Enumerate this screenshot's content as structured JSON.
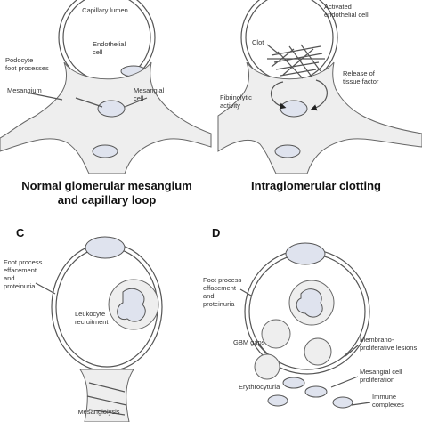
{
  "panels": [
    {
      "caption": [
        "Normal glomerular mesangium",
        "and capillary loop"
      ],
      "labels": [
        {
          "lines": [
            "Capillary lumen"
          ]
        },
        {
          "lines": [
            "Endothelial",
            "cell"
          ]
        },
        {
          "lines": [
            "Podocyte",
            "foot processes"
          ]
        },
        {
          "lines": [
            "Mesangium"
          ]
        },
        {
          "lines": [
            "Mesangial",
            "cell"
          ]
        }
      ]
    },
    {
      "caption": [
        "Intraglomerular clotting"
      ],
      "labels": [
        {
          "lines": [
            "Activated",
            "endothelial cell"
          ]
        },
        {
          "lines": [
            "Clot"
          ]
        },
        {
          "lines": [
            "Release of",
            "tissue factor"
          ]
        },
        {
          "lines": [
            "Fibrinolytic",
            "activity"
          ]
        }
      ]
    },
    {
      "letter": "C",
      "labels": [
        {
          "lines": [
            "Foot process",
            "effacement",
            "and",
            "proteinuria"
          ]
        },
        {
          "lines": [
            "Leukocyte",
            "recruitment"
          ]
        },
        {
          "lines": [
            "Mesangiolysis"
          ]
        }
      ]
    },
    {
      "letter": "D",
      "labels": [
        {
          "lines": [
            "Foot process",
            "effacement",
            "and",
            "proteinuria"
          ]
        },
        {
          "lines": [
            "GBM gaps"
          ]
        },
        {
          "lines": [
            "Membrano-",
            "proliferative lesions"
          ]
        },
        {
          "lines": [
            "Mesangial cell",
            "proliferation"
          ]
        },
        {
          "lines": [
            "Erythrocyturia"
          ]
        },
        {
          "lines": [
            "Immune",
            "complexes"
          ]
        }
      ]
    }
  ]
}
